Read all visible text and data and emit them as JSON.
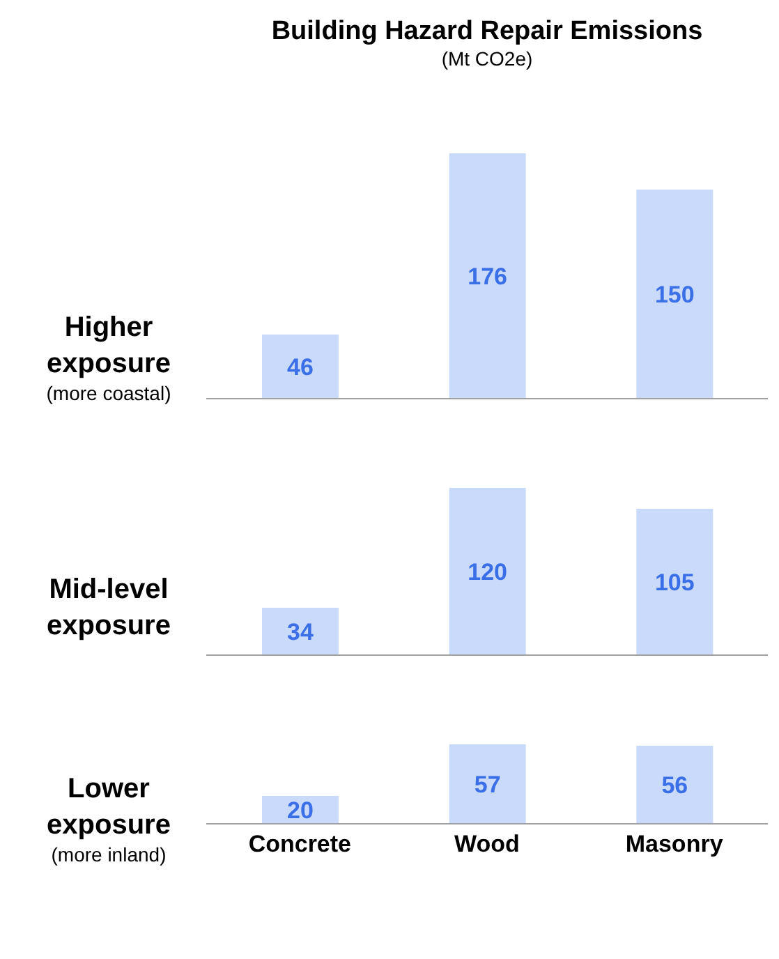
{
  "chart_data": [
    {
      "type": "bar",
      "title": "Building Hazard Repair Emissions",
      "subtitle": "(Mt CO2e)",
      "ylabel": "Higher exposure",
      "annotations": [
        "(more coastal)"
      ],
      "categories": [
        null,
        null,
        null
      ],
      "values": [
        46,
        176,
        150
      ],
      "color": "#c9dafa",
      "data_labels": true,
      "tick_labels": false
    },
    {
      "type": "bar",
      "ylabel": "Mid-level exposure",
      "categories": [
        null,
        null,
        null
      ],
      "values": [
        34,
        120,
        105
      ],
      "color": "#c9dafa",
      "data_labels": true,
      "tick_labels": false
    },
    {
      "type": "bar",
      "ylabel": "Lower exposure",
      "annotations": [
        "(more inland)"
      ],
      "categories": [
        "Concrete",
        "Wood",
        "Masonry"
      ],
      "values": [
        20,
        57,
        56
      ],
      "color": "#c9dafa",
      "data_labels": true,
      "tick_labels": "x"
    }
  ]
}
